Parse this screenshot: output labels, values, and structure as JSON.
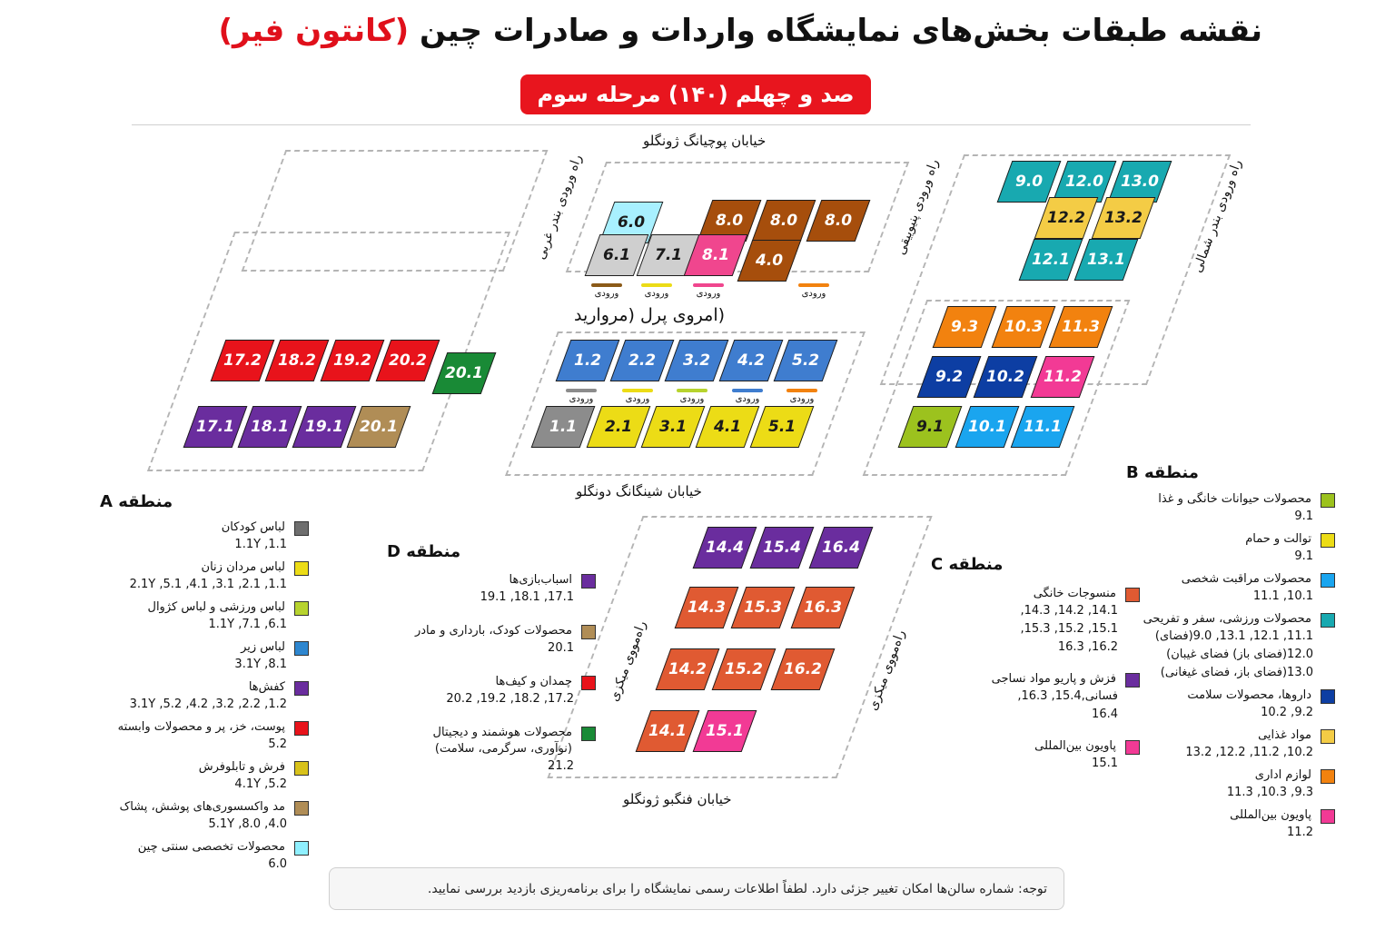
{
  "title": {
    "main": "نقشه طبقات بخش‌های نمایشگاه واردات و صادرات چین",
    "highlight": "(کانتون فیر)"
  },
  "banner": "صد و چهلم (۱۴۰) مرحله سوم",
  "streets": {
    "top": "خیابان پوچیانگ ژونگلو",
    "middle": "خیابان شینگانگ دونگلو",
    "bottom": "خیابان فنگبو ژونگلو"
  },
  "roads": {
    "west_port": "راه ورودی بندر غربی",
    "pazhou": "راه ورودی پنیوییقی",
    "north_port": "راه ورودی بندر شمالی",
    "metro_left": "راه‌مووی میکزی",
    "metro_right": "راه‌مووی میکزی"
  },
  "pearl": "(امروی پرل (مروارید",
  "entry_label": "ورودی",
  "colors": {
    "gray": "#8c8c8c",
    "lightgray": "#cfcfcf",
    "cyan": "#a8f0ff",
    "pink": "#f0468e",
    "brown": "#a64e0c",
    "blue": "#3f7dcf",
    "yellow": "#ecdc16",
    "red": "#e8131b",
    "green": "#198a36",
    "purple": "#6a2d9e",
    "tan": "#b08d56",
    "teal": "#18a9b0",
    "gold": "#f4cc45",
    "orange": "#f2820f",
    "navy": "#0d3ea3",
    "lime": "#9cc21e",
    "sky": "#1aa5ef",
    "rust": "#e05a32",
    "magenta": "#f23a95"
  },
  "halls": [
    {
      "id": "6.0",
      "color": "cyan"
    },
    {
      "id": "8.0",
      "color": "brown"
    },
    {
      "id": "8.0",
      "color": "brown"
    },
    {
      "id": "8.0",
      "color": "brown"
    },
    {
      "id": "6.1",
      "color": "lightgray"
    },
    {
      "id": "7.1",
      "color": "lightgray"
    },
    {
      "id": "8.1",
      "color": "pink"
    },
    {
      "id": "4.0",
      "color": "brown"
    },
    {
      "id": "9.0",
      "color": "teal"
    },
    {
      "id": "12.0",
      "color": "teal"
    },
    {
      "id": "13.0",
      "color": "teal"
    },
    {
      "id": "12.2",
      "color": "gold"
    },
    {
      "id": "13.2",
      "color": "gold"
    },
    {
      "id": "12.1",
      "color": "teal"
    },
    {
      "id": "13.1",
      "color": "teal"
    },
    {
      "id": "9.3",
      "color": "orange"
    },
    {
      "id": "10.3",
      "color": "orange"
    },
    {
      "id": "11.3",
      "color": "orange"
    },
    {
      "id": "9.2",
      "color": "navy"
    },
    {
      "id": "10.2",
      "color": "navy"
    },
    {
      "id": "11.2",
      "color": "magenta"
    },
    {
      "id": "9.1",
      "color": "lime"
    },
    {
      "id": "10.1",
      "color": "sky"
    },
    {
      "id": "11.1",
      "color": "sky"
    },
    {
      "id": "17.2",
      "color": "red"
    },
    {
      "id": "18.2",
      "color": "red"
    },
    {
      "id": "19.2",
      "color": "red"
    },
    {
      "id": "20.2",
      "color": "red"
    },
    {
      "id": "20.1",
      "color": "green"
    },
    {
      "id": "17.1",
      "color": "purple"
    },
    {
      "id": "18.1",
      "color": "purple"
    },
    {
      "id": "19.1",
      "color": "purple"
    },
    {
      "id": "20.1",
      "color": "tan"
    },
    {
      "id": "1.2",
      "color": "blue"
    },
    {
      "id": "2.2",
      "color": "blue"
    },
    {
      "id": "3.2",
      "color": "blue"
    },
    {
      "id": "4.2",
      "color": "blue"
    },
    {
      "id": "5.2",
      "color": "blue"
    },
    {
      "id": "1.1",
      "color": "gray"
    },
    {
      "id": "2.1",
      "color": "yellow"
    },
    {
      "id": "3.1",
      "color": "yellow"
    },
    {
      "id": "4.1",
      "color": "yellow"
    },
    {
      "id": "5.1",
      "color": "yellow"
    },
    {
      "id": "14.4",
      "color": "purple"
    },
    {
      "id": "15.4",
      "color": "purple"
    },
    {
      "id": "16.4",
      "color": "purple"
    },
    {
      "id": "14.3",
      "color": "rust"
    },
    {
      "id": "15.3",
      "color": "rust"
    },
    {
      "id": "16.3",
      "color": "rust"
    },
    {
      "id": "14.2",
      "color": "rust"
    },
    {
      "id": "15.2",
      "color": "rust"
    },
    {
      "id": "16.2",
      "color": "rust"
    },
    {
      "id": "14.1",
      "color": "rust"
    },
    {
      "id": "15.1",
      "color": "magenta"
    }
  ],
  "legend_a": {
    "title": "منطقه A",
    "items": [
      {
        "label": "لباس کودکان",
        "codes": "1.1,  1.1Y",
        "color": "#6e6e6e"
      },
      {
        "label": "لباس مردان زنان",
        "codes": "1.1,  2.1,  3.1,  4.1,  5.1,  2.1Y",
        "color": "#ecdc16"
      },
      {
        "label": "لباس ورزشی و لباس کژوال",
        "codes": "6.1,  7.1,  1.1Y",
        "color": "#b7d32e"
      },
      {
        "label": "لباس زیر",
        "codes": "8.1,  3.1Y",
        "color": "#2d86cf"
      },
      {
        "label": "کفش‌ها",
        "codes": "1.2,  2.2,  3.2,  4.2,  5.2,  3.1Y",
        "color": "#6a2d9e"
      },
      {
        "label": "پوست، خز، پر و محصولات وابسته",
        "codes": "5.2",
        "color": "#e8131b"
      },
      {
        "label": "فرش و تابلوفرش",
        "codes": "5.2,  4.1Y",
        "color": "#d8c21a"
      },
      {
        "label": "مد واکسسوری‌های پوشش، پشاک",
        "codes": "4.0,  8.0,  5.1Y",
        "color": "#b08d56"
      },
      {
        "label": "محصولات تخصصی سنتی چین",
        "codes": "6.0",
        "color": "#8ff0ff"
      }
    ]
  },
  "legend_b": {
    "title": "منطقه B",
    "items": [
      {
        "label": "محصولات حیوانات خانگی و غذا",
        "codes": "9.1",
        "color": "#9cc21e"
      },
      {
        "label": "توالت و حمام",
        "codes": "9.1",
        "color": "#ecdc16"
      },
      {
        "label": "محصولات مراقبت شخصی",
        "codes": "10.1,  11.1",
        "color": "#1aa5ef"
      },
      {
        "label": "محصولات ورزشی، سفر و تفریحی",
        "codes": "11.1,  12.1,  13.1,  9.0(فضای)\n12.0(فضای باز)  فضای غیبان)\n13.0(فضای باز، فضای غیغانی)",
        "color": "#18a9b0"
      },
      {
        "label": "داروها، محصولات سلامت",
        "codes": "9.2,  10.2",
        "color": "#0d3ea3"
      },
      {
        "label": "مواد غذایی",
        "codes": "10.2,  11.2,  12.2,  13.2",
        "color": "#f4cc45"
      },
      {
        "label": "لوازم اداری",
        "codes": "9.3,  10.3,  11.3",
        "color": "#f2820f"
      },
      {
        "label": "پاویون بین‌المللی",
        "codes": "11.2",
        "color": "#f23a95"
      }
    ]
  },
  "legend_c": {
    "title": "منطقه C",
    "items": [
      {
        "label": "منسوجات خانگی",
        "codes": "14.1,  14.2,  14.3,\n15.1,  15.2,  15.3,\n16.2,  16.3",
        "color": "#e05a32"
      },
      {
        "label": "فزش و پاریو مواد نساجی",
        "codes": "فسانی,15.4,  16.3,\n16.4",
        "color": "#6a2d9e"
      },
      {
        "label": "پاویون بین‌المللی",
        "codes": "15.1",
        "color": "#f23a95"
      }
    ]
  },
  "legend_d": {
    "title": "منطقه D",
    "items": [
      {
        "label": "اسباب‌بازی‌ها",
        "codes": "17.1,  18.1,  19.1",
        "color": "#6a2d9e"
      },
      {
        "label": "محصولات کودک، بارداری و مادر",
        "codes": "20.1",
        "color": "#b08d56"
      },
      {
        "label": "چمدان و کیف‌ها",
        "codes": "17.2,  18.2,  19.2,  20.2",
        "color": "#e8131b"
      },
      {
        "label": "محصولات هوشمند و دیجیتال\n(نوآوری، سرگرمی، سلامت)",
        "codes": "21.2",
        "color": "#198a36"
      }
    ]
  },
  "note": "توجه: شماره سالن‌ها امکان تغییر جزئی دارد. لطفاً اطلاعات رسمی نمایشگاه را برای برنامه‌ریزی بازدید بررسی نمایید."
}
